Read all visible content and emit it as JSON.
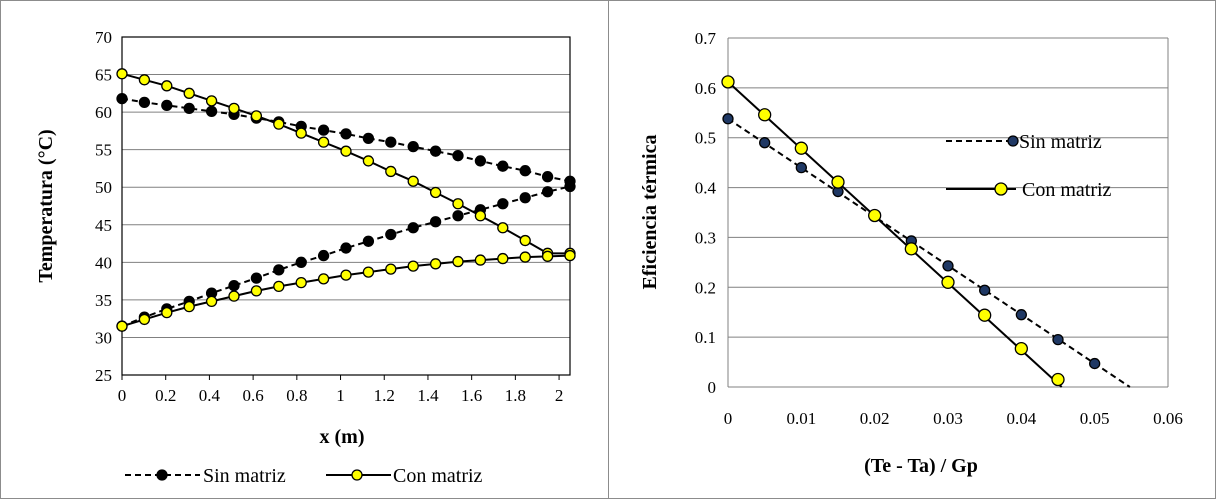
{
  "chart_data": [
    {
      "type": "line",
      "title": "",
      "xlabel": "x (m)",
      "ylabel": "Temperatura (°C)",
      "xlim": [
        0,
        2.05
      ],
      "ylim": [
        25,
        70
      ],
      "xticks": [
        0,
        0.2,
        0.4,
        0.6,
        0.8,
        1,
        1.2,
        1.4,
        1.6,
        1.8,
        2
      ],
      "xtick_labels": [
        "0",
        "0.2",
        "0.4",
        "0.6",
        "0.8",
        "1",
        "1.2",
        "1.4",
        "1.6",
        "1.8",
        "2"
      ],
      "yticks": [
        25,
        30,
        35,
        40,
        45,
        50,
        55,
        60,
        65,
        70
      ],
      "ytick_labels": [
        "25",
        "30",
        "35",
        "40",
        "45",
        "50",
        "55",
        "60",
        "65",
        "70"
      ],
      "grid": "horizontal",
      "legend_position": "bottom",
      "series": [
        {
          "name": "Sin matriz",
          "style": "dashed",
          "marker_color": "#000000",
          "x": [
            0,
            0.1025,
            0.205,
            0.3075,
            0.41,
            0.5125,
            0.615,
            0.7175,
            0.82,
            0.9225,
            1.025,
            1.1275,
            1.23,
            1.3325,
            1.435,
            1.5375,
            1.64,
            1.7425,
            1.845,
            1.9475,
            2.05
          ],
          "y": [
            61.8,
            61.3,
            60.9,
            60.5,
            60.1,
            59.7,
            59.2,
            58.7,
            58.1,
            57.6,
            57.1,
            56.5,
            56.0,
            55.4,
            54.8,
            54.2,
            53.5,
            52.8,
            52.2,
            51.4,
            50.8
          ]
        },
        {
          "name": "Sin matriz",
          "style": "dashed",
          "marker_color": "#000000",
          "x": [
            0,
            0.1025,
            0.205,
            0.3075,
            0.41,
            0.5125,
            0.615,
            0.7175,
            0.82,
            0.9225,
            1.025,
            1.1275,
            1.23,
            1.3325,
            1.435,
            1.5375,
            1.64,
            1.7425,
            1.845,
            1.9475,
            2.05
          ],
          "y": [
            31.5,
            32.7,
            33.8,
            34.8,
            35.9,
            36.9,
            37.9,
            39.0,
            40.0,
            40.9,
            41.9,
            42.8,
            43.7,
            44.6,
            45.4,
            46.2,
            47.0,
            47.8,
            48.6,
            49.4,
            50.1
          ]
        },
        {
          "name": "Con matriz",
          "style": "solid",
          "marker_color": "#ffff00",
          "x": [
            0,
            0.1025,
            0.205,
            0.3075,
            0.41,
            0.5125,
            0.615,
            0.7175,
            0.82,
            0.9225,
            1.025,
            1.1275,
            1.23,
            1.3325,
            1.435,
            1.5375,
            1.64,
            1.7425,
            1.845,
            1.9475,
            2.05
          ],
          "y": [
            65.1,
            64.3,
            63.5,
            62.5,
            61.5,
            60.5,
            59.5,
            58.4,
            57.2,
            56.0,
            54.8,
            53.5,
            52.1,
            50.8,
            49.3,
            47.8,
            46.2,
            44.6,
            42.9,
            41.2,
            41.2
          ]
        },
        {
          "name": "Con matriz",
          "style": "solid",
          "marker_color": "#ffff00",
          "x": [
            0,
            0.1025,
            0.205,
            0.3075,
            0.41,
            0.5125,
            0.615,
            0.7175,
            0.82,
            0.9225,
            1.025,
            1.1275,
            1.23,
            1.3325,
            1.435,
            1.5375,
            1.64,
            1.7425,
            1.845,
            1.9475,
            2.05
          ],
          "y": [
            31.5,
            32.4,
            33.3,
            34.1,
            34.8,
            35.5,
            36.2,
            36.8,
            37.3,
            37.8,
            38.3,
            38.7,
            39.1,
            39.5,
            39.8,
            40.1,
            40.3,
            40.5,
            40.7,
            40.8,
            40.9
          ]
        }
      ],
      "legend": [
        {
          "label": "Sin matriz",
          "style": "dashed",
          "marker_color": "#000000"
        },
        {
          "label": "Con matriz",
          "style": "solid",
          "marker_color": "#ffff00"
        }
      ]
    },
    {
      "type": "line",
      "title": "",
      "xlabel": "(Te - Ta) / Gp",
      "ylabel": "Eficiencia térmica",
      "xlim": [
        0,
        0.06
      ],
      "ylim": [
        0,
        0.7
      ],
      "xticks": [
        0,
        0.01,
        0.02,
        0.03,
        0.04,
        0.05,
        0.06
      ],
      "xtick_labels": [
        "0",
        "0.01",
        "0.02",
        "0.03",
        "0.04",
        "0.05",
        "0.06"
      ],
      "yticks": [
        0,
        0.1,
        0.2,
        0.3,
        0.4,
        0.5,
        0.6,
        0.7
      ],
      "ytick_labels": [
        "0",
        "0.1",
        "0.2",
        "0.3",
        "0.4",
        "0.5",
        "0.6",
        "0.7"
      ],
      "grid": "horizontal",
      "legend_position": "top-right",
      "series": [
        {
          "name": "Sin matriz",
          "style": "dashed",
          "marker_color": "#1f3864",
          "x": [
            0,
            0.005,
            0.01,
            0.015,
            0.02,
            0.025,
            0.03,
            0.035,
            0.04,
            0.045,
            0.05
          ],
          "y": [
            0.538,
            0.49,
            0.44,
            0.392,
            0.343,
            0.293,
            0.243,
            0.194,
            0.145,
            0.095,
            0.047
          ],
          "fit_line": {
            "x": [
              0,
              0.0548
            ],
            "y": [
              0.538,
              0
            ]
          }
        },
        {
          "name": "Con matriz",
          "style": "solid",
          "marker_color": "#ffff00",
          "x": [
            0,
            0.005,
            0.01,
            0.015,
            0.02,
            0.025,
            0.03,
            0.035,
            0.04,
            0.045
          ],
          "y": [
            0.612,
            0.546,
            0.479,
            0.411,
            0.344,
            0.277,
            0.21,
            0.144,
            0.077,
            0.015
          ],
          "fit_line": {
            "x": [
              0,
              0.0455
            ],
            "y": [
              0.612,
              0
            ]
          }
        }
      ],
      "legend": [
        {
          "label": "Sin matriz",
          "style": "dashed",
          "marker_color": "#1f3864"
        },
        {
          "label": "Con matriz",
          "style": "solid",
          "marker_color": "#ffff00"
        }
      ]
    }
  ]
}
